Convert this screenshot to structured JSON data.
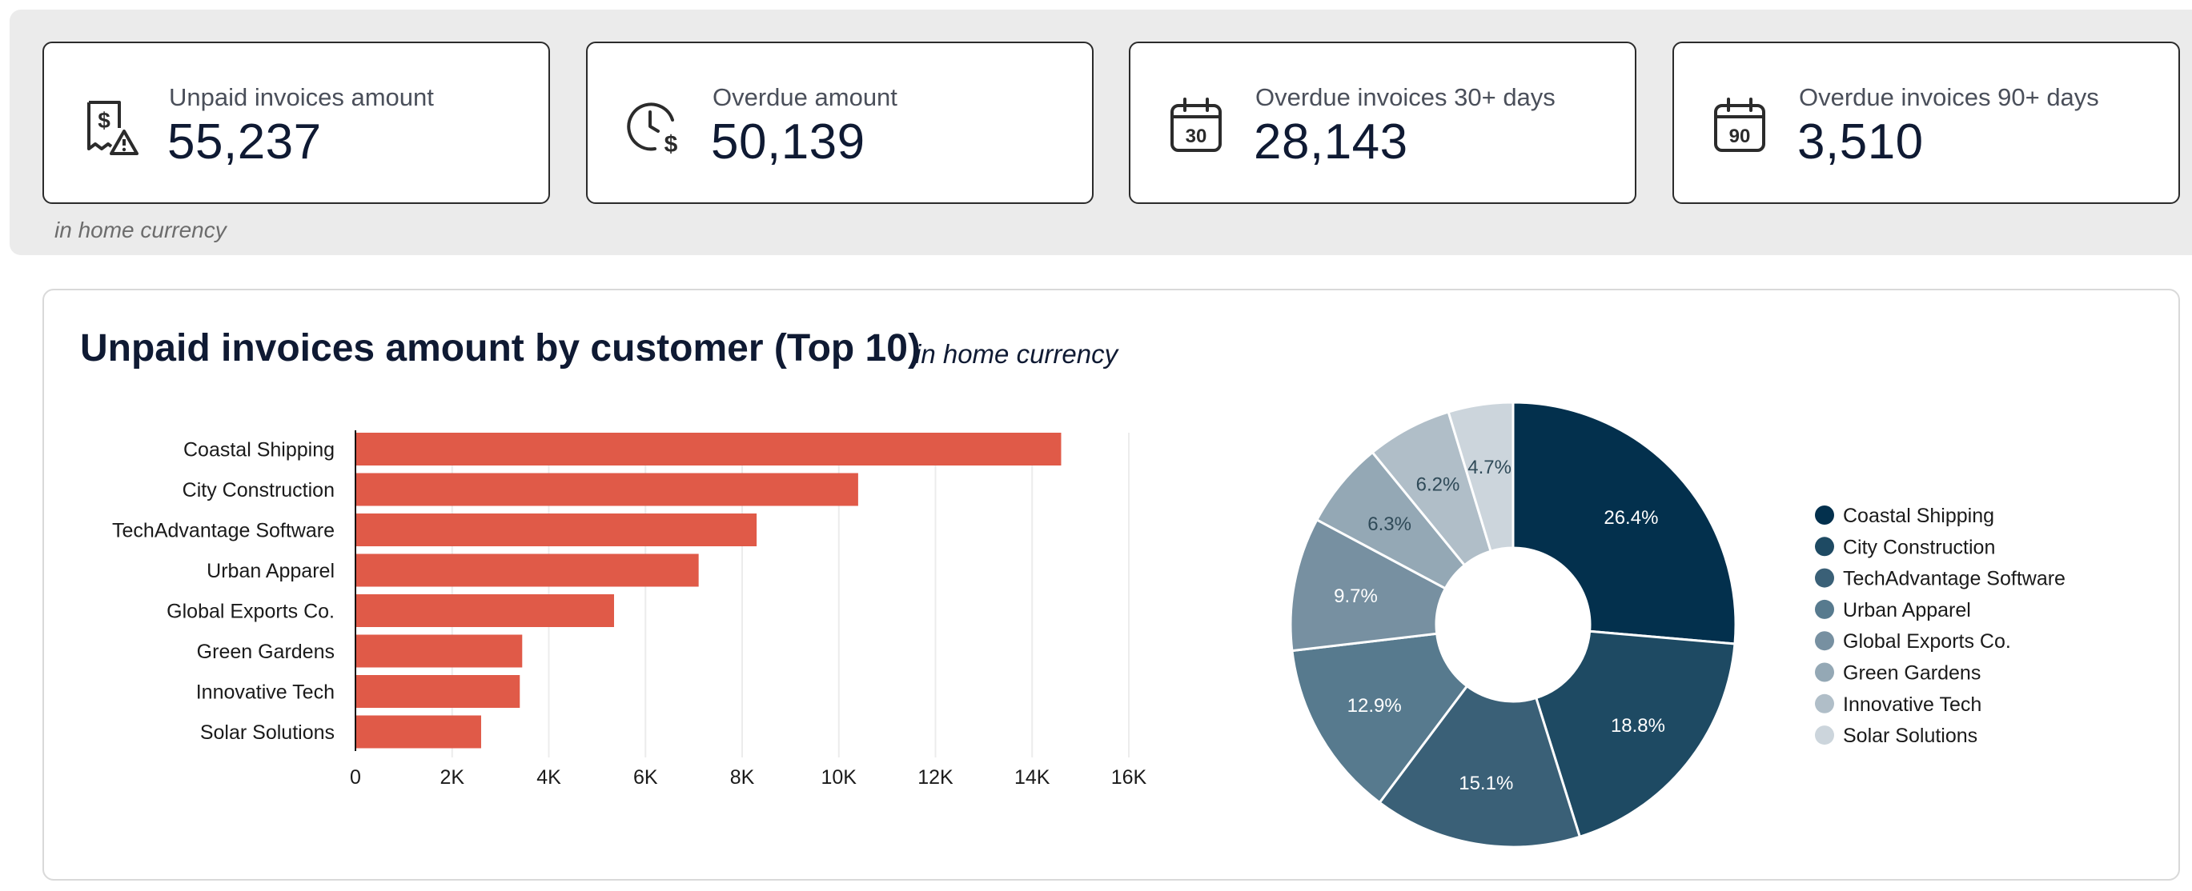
{
  "kpis": [
    {
      "label": "Unpaid invoices amount",
      "value": "55,237",
      "icon": "receipt-dollar-warning-icon"
    },
    {
      "label": "Overdue amount",
      "value": "50,139",
      "icon": "clock-dollar-icon"
    },
    {
      "label": "Overdue invoices 30+ days",
      "value": "28,143",
      "icon": "calendar-30-icon",
      "icon_text": "30"
    },
    {
      "label": "Overdue invoices 90+ days",
      "value": "3,510",
      "icon": "calendar-90-icon",
      "icon_text": "90"
    }
  ],
  "kpi_footnote": "in home currency",
  "panel": {
    "title": "Unpaid invoices amount by customer (Top 10)",
    "subtitle": "in home currency"
  },
  "colors": {
    "bar": "#e05a48",
    "pie": [
      "#03304d",
      "#1e4a63",
      "#3a6077",
      "#577a8e",
      "#7790a1",
      "#94a8b5",
      "#b0bec8",
      "#ccd5dc"
    ]
  },
  "chart_data": [
    {
      "type": "bar",
      "orientation": "horizontal",
      "categories": [
        "Coastal Shipping",
        "City Construction",
        "TechAdvantage Software",
        "Urban Apparel",
        "Global Exports Co.",
        "Green Gardens",
        "Innovative Tech",
        "Solar Solutions"
      ],
      "values": [
        14600,
        10400,
        8300,
        7100,
        5350,
        3450,
        3400,
        2600
      ],
      "xlim": [
        0,
        16000
      ],
      "xticks": [
        "0",
        "2K",
        "4K",
        "6K",
        "8K",
        "10K",
        "12K",
        "14K",
        "16K"
      ],
      "grid": true
    },
    {
      "type": "pie",
      "donut": true,
      "labels": [
        "Coastal Shipping",
        "City Construction",
        "TechAdvantage Software",
        "Urban Apparel",
        "Global Exports Co.",
        "Green Gardens",
        "Innovative Tech",
        "Solar Solutions"
      ],
      "values": [
        26.4,
        18.8,
        15.1,
        12.9,
        9.7,
        6.3,
        6.2,
        4.7
      ],
      "value_labels": [
        "26.4%",
        "18.8%",
        "15.1%",
        "12.9%",
        "9.7%",
        "6.3%",
        "6.2%",
        "4.7%"
      ],
      "legend": "right"
    }
  ]
}
